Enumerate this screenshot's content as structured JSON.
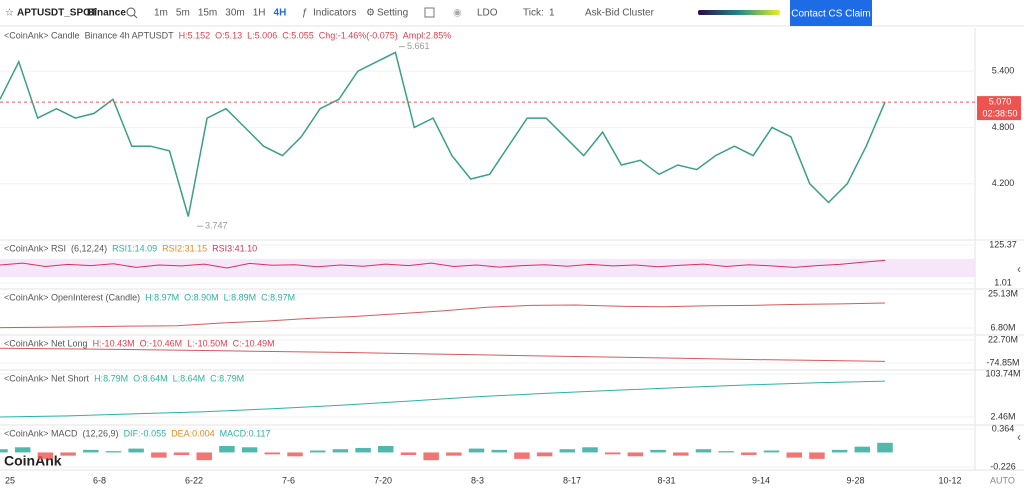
{
  "toolbar": {
    "symbol": "APTUSDT_SPOT",
    "exchange": "Binance",
    "intervals": [
      "1m",
      "5m",
      "15m",
      "30m",
      "1H",
      "4H"
    ],
    "indicators": "Indicators",
    "setting": "Setting",
    "coin": "LDO",
    "tick_label": "Tick:",
    "tick_value": "1",
    "cluster": "Ask-Bid Cluster",
    "contact": "Contact CS Claim"
  },
  "watermark": "CoinAnk",
  "auto": "AUTO",
  "x_labels": [
    "25",
    "6-8",
    "6-22",
    "7-6",
    "7-20",
    "8-3",
    "8-17",
    "8-31",
    "9-14",
    "9-28",
    "10-12"
  ],
  "chart_data": [
    {
      "type": "line",
      "color": "#3a9f89",
      "legend": [
        {
          "text": "<CoinAnk> Candle",
          "color": "#555"
        },
        {
          "text": "Binance 4h APTUSDT",
          "color": "#555"
        },
        {
          "text": "H:5.152",
          "color": "#e0404e"
        },
        {
          "text": "O:5.13",
          "color": "#e0404e"
        },
        {
          "text": "L:5.006",
          "color": "#e0404e"
        },
        {
          "text": "C:5.055",
          "color": "#e0404e"
        },
        {
          "text": "Chg:-1.46%(-0.075)",
          "color": "#e0404e"
        },
        {
          "text": "Ampl:2.85%",
          "color": "#e0404e"
        }
      ],
      "ylim": [
        3.6,
        5.86
      ],
      "yticks": [
        {
          "value": 5.4,
          "label": "5.400"
        },
        {
          "value": 4.8,
          "label": "4.800"
        },
        {
          "value": 4.2,
          "label": "4.200"
        }
      ],
      "annotations": [
        5.661,
        3.747
      ],
      "last_price": {
        "value": 5.07,
        "label": "5.070"
      },
      "countdown": "02:38:50",
      "values": [
        5.1,
        5.5,
        4.9,
        5.0,
        4.9,
        4.95,
        5.1,
        4.6,
        4.6,
        4.55,
        3.85,
        4.9,
        5.0,
        4.8,
        4.6,
        4.5,
        4.7,
        5.0,
        5.1,
        5.4,
        5.5,
        5.6,
        4.8,
        4.9,
        4.5,
        4.25,
        4.3,
        4.6,
        4.9,
        4.9,
        4.7,
        4.5,
        4.75,
        4.4,
        4.45,
        4.3,
        4.4,
        4.35,
        4.5,
        4.6,
        4.5,
        4.8,
        4.7,
        4.2,
        4.0,
        4.2,
        4.6,
        5.07
      ]
    },
    {
      "type": "line",
      "color": "#d6335c",
      "band_color": "#f1dcf7",
      "legend": [
        {
          "text": "<CoinAnk> RSI",
          "color": "#555"
        },
        {
          "text": "(6,12,24)",
          "color": "#555"
        },
        {
          "text": "RSI1:14.09",
          "color": "#2bb3a0"
        },
        {
          "text": "RSI2:31.15",
          "color": "#e58a1f"
        },
        {
          "text": "RSI3:41.10",
          "color": "#d6335c"
        }
      ],
      "ylim": [
        1.01,
        125.37
      ],
      "yticks": [
        125.37,
        1.01
      ],
      "values": [
        60,
        66,
        55,
        62,
        58,
        64,
        52,
        60,
        57,
        63,
        50,
        65,
        59,
        61,
        54,
        60,
        56,
        63,
        58,
        66,
        55,
        60,
        53,
        58,
        61,
        56,
        62,
        57,
        60,
        54,
        59,
        63,
        55,
        61,
        57,
        52,
        58,
        62,
        69,
        75
      ]
    },
    {
      "type": "line",
      "color": "#d65a5a",
      "legend": [
        {
          "text": "<CoinAnk> OpenInterest (Candle)",
          "color": "#555"
        },
        {
          "text": "H:8.97M",
          "color": "#2bb3a0"
        },
        {
          "text": "O:8.90M",
          "color": "#2bb3a0"
        },
        {
          "text": "L:8.89M",
          "color": "#2bb3a0"
        },
        {
          "text": "C:8.97M",
          "color": "#2bb3a0"
        }
      ],
      "ylim": [
        6800000,
        25130000
      ],
      "yticks": [
        {
          "value": 25130000,
          "label": "25.13M"
        },
        {
          "value": 6800000,
          "label": "6.80M"
        }
      ],
      "values": [
        7000000,
        7200000,
        7500000,
        7800000,
        8000000,
        9500000,
        10500000,
        12000000,
        13000000,
        14500000,
        16000000,
        18000000,
        19000000,
        19200000,
        18500000,
        18300000,
        18800000,
        19000000,
        19500000,
        19800000,
        20300000
      ]
    },
    {
      "type": "line",
      "color": "#d65a5a",
      "legend": [
        {
          "text": "<CoinAnk> Net Long",
          "color": "#555"
        },
        {
          "text": "H:-10.43M",
          "color": "#e0404e"
        },
        {
          "text": "O:-10.46M",
          "color": "#e0404e"
        },
        {
          "text": "L:-10.50M",
          "color": "#e0404e"
        },
        {
          "text": "C:-10.49M",
          "color": "#e0404e"
        }
      ],
      "ylim": [
        -74850000,
        22700000
      ],
      "yticks": [
        {
          "value": 22700000,
          "label": "22.70M"
        },
        {
          "value": -74850000,
          "label": "-74.85M"
        }
      ],
      "values": [
        -12000000,
        -15000000,
        -18000000,
        -22000000,
        -26000000,
        -30000000,
        -35000000,
        -40000000,
        -45000000,
        -50000000,
        -55000000,
        -60000000,
        -64000000,
        -68000000
      ]
    },
    {
      "type": "line",
      "color": "#2bb3a0",
      "legend": [
        {
          "text": "<CoinAnk> Net Short",
          "color": "#555"
        },
        {
          "text": "H:8.79M",
          "color": "#2bb3a0"
        },
        {
          "text": "O:8.64M",
          "color": "#2bb3a0"
        },
        {
          "text": "L:8.64M",
          "color": "#2bb3a0"
        },
        {
          "text": "C:8.79M",
          "color": "#2bb3a0"
        }
      ],
      "ylim": [
        2460000,
        103740000
      ],
      "yticks": [
        {
          "value": 103740000,
          "label": "103.74M"
        },
        {
          "value": 2460000,
          "label": "2.46M"
        }
      ],
      "values": [
        2500000,
        5000000,
        10000000,
        15000000,
        22000000,
        30000000,
        40000000,
        50000000,
        58000000,
        65000000,
        72000000,
        78000000,
        83000000,
        87000000
      ]
    },
    {
      "type": "bar",
      "up_color": "#26a69a",
      "down_color": "#ef5350",
      "legend": [
        {
          "text": "<CoinAnk> MACD",
          "color": "#555"
        },
        {
          "text": "(12,26,9)",
          "color": "#555"
        },
        {
          "text": "DIF:-0.055",
          "color": "#2bb3a0"
        },
        {
          "text": "DEA:0.004",
          "color": "#e58a1f"
        },
        {
          "text": "MACD:0.117",
          "color": "#2bb3a0"
        }
      ],
      "ylim": [
        -0.226,
        0.364
      ],
      "yticks": [
        0.364,
        -0.226
      ],
      "values": [
        0.05,
        0.08,
        -0.1,
        -0.05,
        0.04,
        0.02,
        0.06,
        -0.08,
        -0.04,
        -0.12,
        0.1,
        0.08,
        -0.03,
        -0.06,
        0.03,
        0.05,
        0.07,
        0.1,
        -0.04,
        -0.12,
        -0.05,
        0.06,
        0.04,
        -0.1,
        -0.06,
        0.05,
        0.08,
        -0.03,
        -0.06,
        0.04,
        -0.05,
        0.05,
        0.02,
        -0.04,
        0.03,
        -0.08,
        -0.1,
        0.04,
        0.09,
        0.15
      ]
    }
  ]
}
